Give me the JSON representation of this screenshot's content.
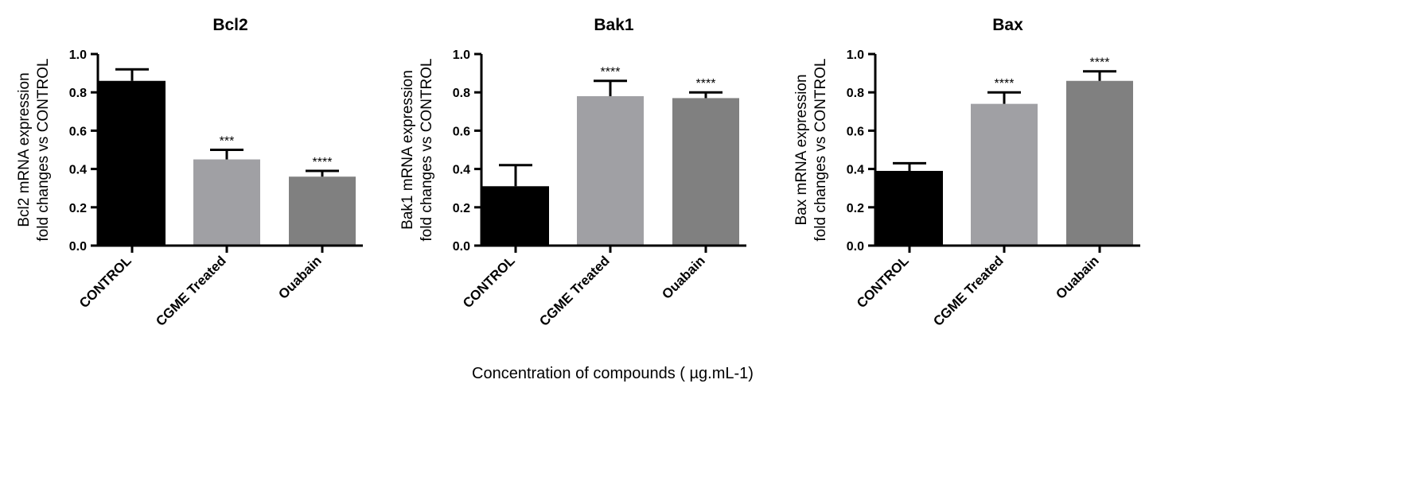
{
  "shared_xlabel": "Concentration of compounds  ( µg.mL-1)",
  "colors": {
    "CONTROL": "#000000",
    "CGME Treated": "#a0a0a4",
    "Ouabain": "#808080"
  },
  "chart_data": [
    {
      "type": "bar",
      "title": "Bcl2",
      "ylabel_line1": "Bcl2 mRNA expression",
      "ylabel_line2": "fold changes vs CONTROL",
      "categories": [
        "CONTROL",
        "CGME Treated",
        "Ouabain"
      ],
      "values": [
        0.86,
        0.45,
        0.36
      ],
      "errors": [
        0.06,
        0.05,
        0.03
      ],
      "significance": [
        "",
        "***",
        "****"
      ],
      "ylim": [
        0,
        1.0
      ],
      "yticks": [
        "0.0",
        "0.2",
        "0.4",
        "0.6",
        "0.8",
        "1.0"
      ],
      "grid": false
    },
    {
      "type": "bar",
      "title": "Bak1",
      "ylabel_line1": "Bak1 mRNA expression",
      "ylabel_line2": "fold changes vs CONTROL",
      "categories": [
        "CONTROL",
        "CGME Treated",
        "Ouabain"
      ],
      "values": [
        0.31,
        0.78,
        0.77
      ],
      "errors": [
        0.11,
        0.08,
        0.03
      ],
      "significance": [
        "",
        "****",
        "****"
      ],
      "ylim": [
        0,
        1.0
      ],
      "yticks": [
        "0.0",
        "0.2",
        "0.4",
        "0.6",
        "0.8",
        "1.0"
      ],
      "grid": false
    },
    {
      "type": "bar",
      "title": "Bax",
      "ylabel_line1": "Bax mRNA expression",
      "ylabel_line2": "fold changes vs CONTROL",
      "categories": [
        "CONTROL",
        "CGME Treated",
        "Ouabain"
      ],
      "values": [
        0.39,
        0.74,
        0.86
      ],
      "errors": [
        0.04,
        0.06,
        0.05
      ],
      "significance": [
        "",
        "****",
        "****"
      ],
      "ylim": [
        0,
        1.0
      ],
      "yticks": [
        "0.0",
        "0.2",
        "0.4",
        "0.6",
        "0.8",
        "1.0"
      ],
      "grid": false
    }
  ]
}
